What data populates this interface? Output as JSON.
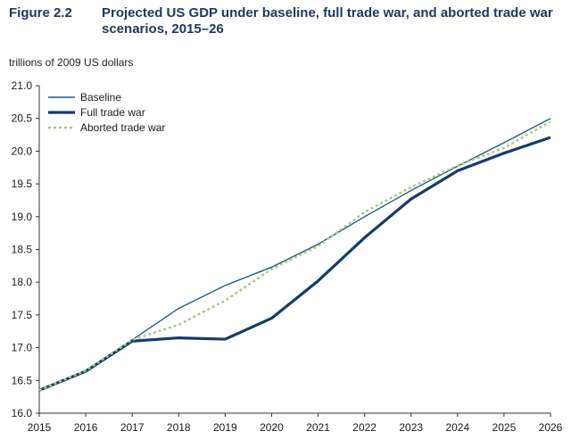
{
  "figure": {
    "number": "Figure 2.2",
    "title": "Projected US GDP under baseline, full trade war, and aborted trade war scenarios, 2015–26"
  },
  "colors": {
    "baseline": "#1f5c82",
    "full_trade_war": "#143c6b",
    "aborted_trade_war": "#a8c97c",
    "axis": "#333333"
  },
  "chart_data": {
    "type": "line",
    "title": "Projected US GDP under baseline, full trade war, and aborted trade war scenarios, 2015–26",
    "ylabel": "trillions of 2009 US dollars",
    "xlabel": "",
    "x": [
      2015,
      2016,
      2017,
      2018,
      2019,
      2020,
      2021,
      2022,
      2023,
      2024,
      2025,
      2026
    ],
    "x_tick_labels": [
      "2015",
      "2016",
      "2017",
      "2018",
      "2019",
      "2020",
      "2021",
      "2022",
      "2023",
      "2024",
      "2025",
      "2026"
    ],
    "ylim": [
      16.0,
      21.0
    ],
    "y_ticks": [
      16.0,
      16.5,
      17.0,
      17.5,
      18.0,
      18.5,
      19.0,
      19.5,
      20.0,
      20.5,
      21.0
    ],
    "y_tick_labels": [
      "16.0",
      "16.5",
      "17.0",
      "17.5",
      "18.0",
      "18.5",
      "19.0",
      "19.5",
      "20.0",
      "20.5",
      "21.0"
    ],
    "grid": false,
    "legend_position": "top-left",
    "series": [
      {
        "name": "Baseline",
        "style": "thin",
        "values": [
          16.35,
          16.65,
          17.12,
          17.6,
          17.95,
          18.23,
          18.58,
          19.0,
          19.4,
          19.77,
          20.13,
          20.5
        ]
      },
      {
        "name": "Full trade war",
        "style": "thick",
        "values": [
          16.35,
          16.64,
          17.1,
          17.15,
          17.13,
          17.45,
          18.02,
          18.68,
          19.27,
          19.7,
          19.97,
          20.21
        ]
      },
      {
        "name": "Aborted trade war",
        "style": "dotted",
        "values": [
          16.35,
          16.65,
          17.12,
          17.35,
          17.72,
          18.2,
          18.55,
          19.07,
          19.45,
          19.78,
          20.05,
          20.45
        ]
      }
    ]
  }
}
